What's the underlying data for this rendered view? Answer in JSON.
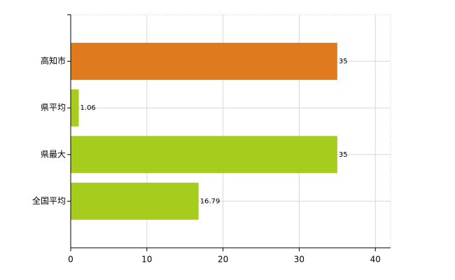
{
  "chart_data": {
    "type": "hbar",
    "categories": [
      "高知市",
      "県平均",
      "県最大",
      "全国平均"
    ],
    "values": [
      35,
      1.06,
      35,
      16.79
    ],
    "colors": [
      "#e07a1f",
      "#a6cc1e",
      "#a6cc1e",
      "#a6cc1e"
    ],
    "xlim": [
      0,
      42
    ],
    "xticks": [
      0,
      10,
      20,
      30,
      40
    ],
    "grid": true
  }
}
